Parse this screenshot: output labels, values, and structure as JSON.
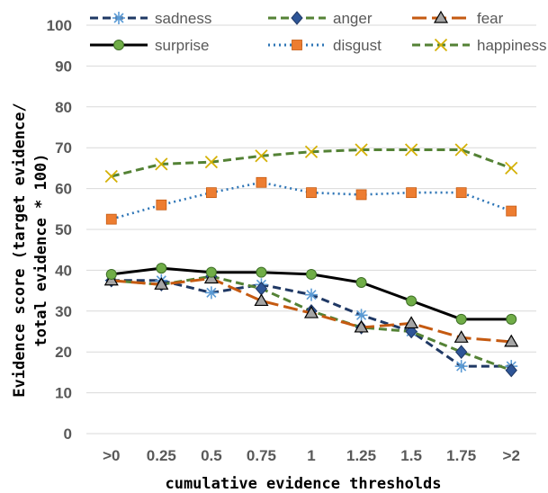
{
  "chart_data": {
    "type": "line",
    "title": "",
    "xlabel": "cumulative evidence thresholds",
    "ylabel_lines": [
      "Evidence score (target evidence/",
      "total evidence * 100)"
    ],
    "categories": [
      ">0",
      "0.25",
      "0.5",
      "0.75",
      "1",
      "1.25",
      "1.5",
      "1.75",
      ">2"
    ],
    "ylim": [
      0,
      100
    ],
    "yticks": [
      "0",
      "10",
      "20",
      "30",
      "40",
      "50",
      "60",
      "70",
      "80",
      "90",
      "100"
    ],
    "grid": true,
    "legend_position": "top",
    "series": [
      {
        "name": "sadness",
        "color": "#1f3864",
        "style": "dashed",
        "marker": "asterisk",
        "marker_color": "#5b9bd5",
        "values": [
          37.5,
          37.5,
          34.5,
          36.5,
          34,
          29,
          25,
          16.5,
          16.5
        ]
      },
      {
        "name": "anger",
        "color": "#548235",
        "style": "dashed",
        "marker": "diamond",
        "marker_color": "#2e5597",
        "values": [
          37.5,
          36.5,
          38.5,
          35.5,
          30,
          26,
          25,
          20,
          15.5
        ]
      },
      {
        "name": "fear",
        "color": "#c55a11",
        "style": "longdash",
        "marker": "triangle",
        "marker_color": "#a5a5a5",
        "values": [
          37.5,
          36.5,
          38,
          32.5,
          29.5,
          26,
          27,
          23.5,
          22.5
        ]
      },
      {
        "name": "surprise",
        "color": "#000000",
        "style": "solid",
        "marker": "circle",
        "marker_color": "#70ad47",
        "values": [
          39,
          40.5,
          39.5,
          39.5,
          39,
          37,
          32.5,
          28,
          28
        ]
      },
      {
        "name": "disgust",
        "color": "#2e75b6",
        "style": "dotted",
        "marker": "square",
        "marker_color": "#ed7d31",
        "values": [
          52.5,
          56,
          59,
          61.5,
          59,
          58.5,
          59,
          59,
          54.5
        ]
      },
      {
        "name": "happiness",
        "color": "#548235",
        "style": "dashed",
        "marker": "x",
        "marker_color": "#f2d24a",
        "values": [
          63,
          66,
          66.5,
          68,
          69,
          69.5,
          69.5,
          69.5,
          65
        ]
      }
    ]
  }
}
